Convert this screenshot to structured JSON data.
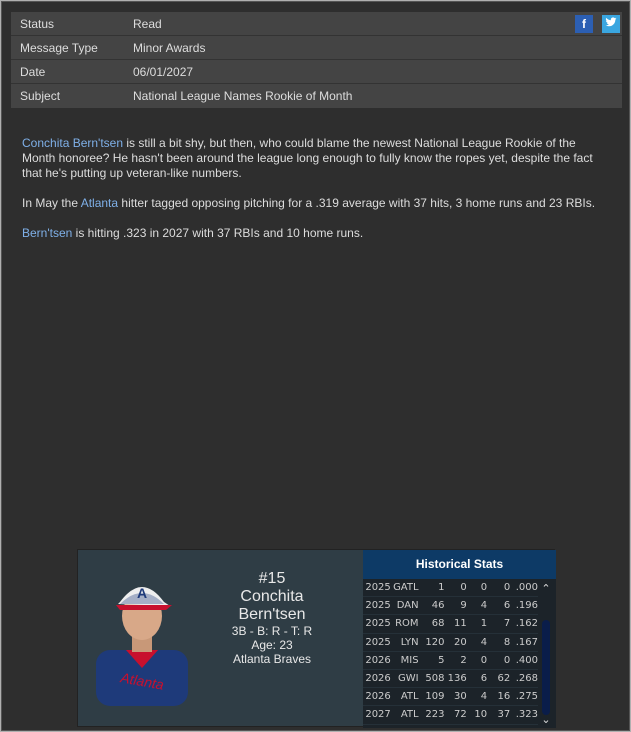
{
  "meta": [
    {
      "label": "Status",
      "value": "Read"
    },
    {
      "label": "Message Type",
      "value": "Minor Awards"
    },
    {
      "label": "Date",
      "value": "06/01/2027"
    },
    {
      "label": "Subject",
      "value": "National League Names Rookie of Month"
    }
  ],
  "social": {
    "facebook": "f",
    "twitter": "t"
  },
  "body": {
    "p1_link": "Conchita Bern'tsen",
    "p1_text": " is still a bit shy, but then, who could blame the newest National League Rookie of the Month honoree? He hasn't been around the league long enough to fully know the ropes yet, despite the fact that he's putting up veteran-like numbers.",
    "p2_pre": "In May the ",
    "p2_link": "Atlanta",
    "p2_text": " hitter tagged opposing pitching for a .319 average with 37 hits, 3 home runs and 23 RBIs.",
    "p3_link": "Bern'tsen",
    "p3_text": " is hitting .323 in 2027 with 37 RBIs and 10 home runs."
  },
  "player": {
    "number": "#15",
    "first": "Conchita",
    "last": "Bern'tsen",
    "positions": "3B - B: R - T: R",
    "age": "Age: 23",
    "team": "Atlanta Braves",
    "jersey_text": "Atlanta"
  },
  "history": {
    "title": "Historical Stats",
    "rows": [
      [
        "2025",
        "GATL",
        "1",
        "0",
        "0",
        "0",
        ".000"
      ],
      [
        "2025",
        "DAN",
        "46",
        "9",
        "4",
        "6",
        ".196"
      ],
      [
        "2025",
        "ROM",
        "68",
        "11",
        "1",
        "7",
        ".162"
      ],
      [
        "2025",
        "LYN",
        "120",
        "20",
        "4",
        "8",
        ".167"
      ],
      [
        "2026",
        "MIS",
        "5",
        "2",
        "0",
        "0",
        ".400"
      ],
      [
        "2026",
        "GWI",
        "508",
        "136",
        "6",
        "62",
        ".268"
      ],
      [
        "2026",
        "ATL",
        "109",
        "30",
        "4",
        "16",
        ".275"
      ],
      [
        "2027",
        "ATL",
        "223",
        "72",
        "10",
        "37",
        ".323"
      ]
    ]
  }
}
